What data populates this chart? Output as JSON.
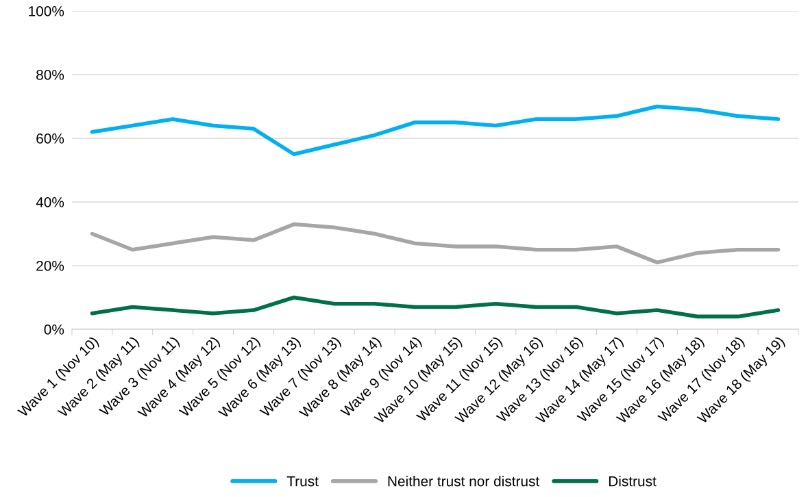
{
  "chart_data": {
    "type": "line",
    "categories": [
      "Wave 1 (Nov 10)",
      "Wave 2 (May 11)",
      "Wave 3 (Nov 11)",
      "Wave 4 (May 12)",
      "Wave 5 (Nov 12)",
      "Wave 6 (May 13)",
      "Wave 7 (Nov 13)",
      "Wave 8 (May 14)",
      "Wave 9 (Nov 14)",
      "Wave 10 (May 15)",
      "Wave 11 (Nov 15)",
      "Wave 12 (May 16)",
      "Wave 13 (Nov 16)",
      "Wave 14 (May 17)",
      "Wave 15 (Nov 17)",
      "Wave 16 (May 18)",
      "Wave 17 (Nov 18)",
      "Wave 18 (May 19)"
    ],
    "series": [
      {
        "name": "Trust",
        "color": "#00b0f0",
        "values": [
          62,
          64,
          66,
          64,
          63,
          55,
          58,
          61,
          65,
          65,
          64,
          66,
          66,
          67,
          70,
          69,
          67,
          66
        ]
      },
      {
        "name": "Neither trust nor distrust",
        "color": "#a6a6a6",
        "values": [
          30,
          25,
          27,
          29,
          28,
          33,
          32,
          30,
          27,
          26,
          26,
          25,
          25,
          26,
          21,
          24,
          25,
          25
        ]
      },
      {
        "name": "Distrust",
        "color": "#00704a",
        "values": [
          5,
          7,
          6,
          5,
          6,
          10,
          8,
          8,
          7,
          7,
          8,
          7,
          7,
          5,
          6,
          4,
          4,
          6
        ]
      }
    ],
    "ylim": [
      0,
      100
    ],
    "yticks": [
      {
        "value": 0,
        "label": "0%"
      },
      {
        "value": 20,
        "label": "20%"
      },
      {
        "value": 40,
        "label": "40%"
      },
      {
        "value": 60,
        "label": "60%"
      },
      {
        "value": 80,
        "label": "80%"
      },
      {
        "value": 100,
        "label": "100%"
      }
    ],
    "grid": "y",
    "legend": "bottom",
    "marker": "none",
    "line_style": "solid"
  }
}
